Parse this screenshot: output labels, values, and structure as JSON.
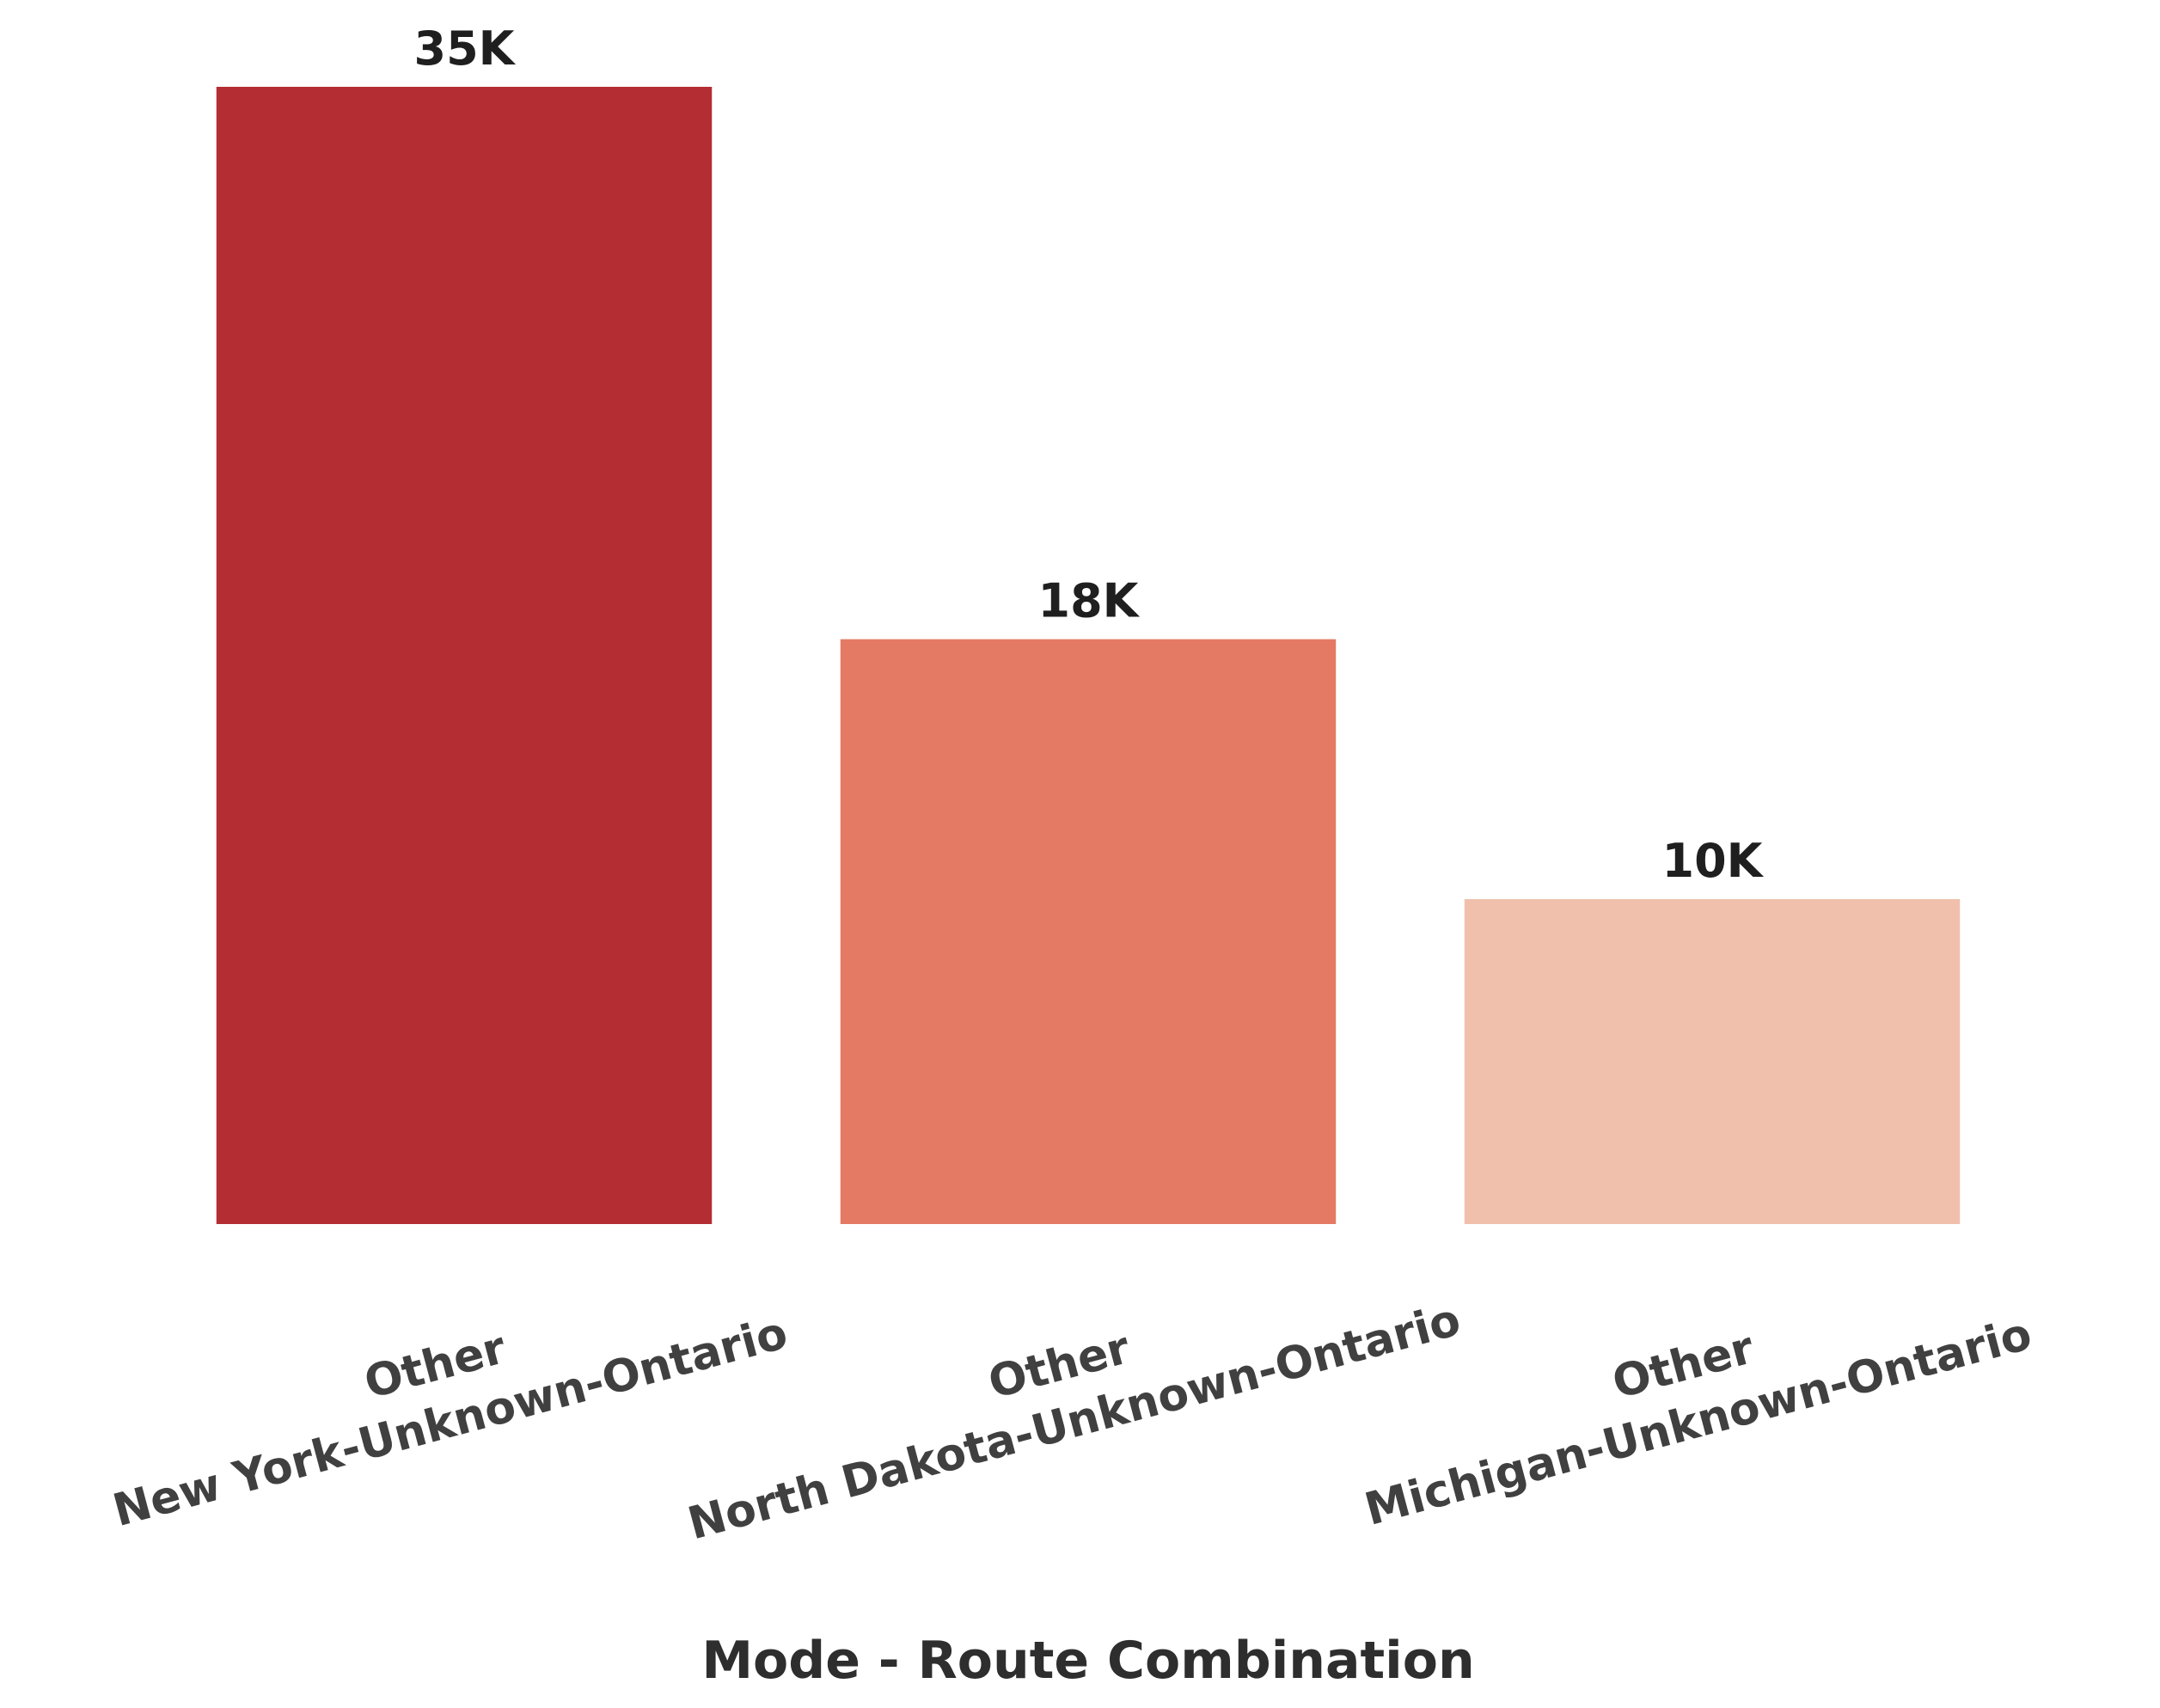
{
  "chart_data": {
    "type": "bar",
    "title": "",
    "xlabel": "Mode - Route Combination",
    "ylabel": "",
    "categories": [
      [
        "Other",
        "New York-Unknown-Ontario"
      ],
      [
        "Other",
        "North Dakota-Unknown-Ontario"
      ],
      [
        "Other",
        "Michigan-Unknown-Ontario"
      ]
    ],
    "values": [
      35000,
      18000,
      10000
    ],
    "value_labels": [
      "35K",
      "18K",
      "10K"
    ],
    "colors": [
      "#b42d33",
      "#e47a64",
      "#f0c0ac"
    ],
    "ylim": [
      0,
      35000
    ],
    "grid": false,
    "legend": "none"
  }
}
